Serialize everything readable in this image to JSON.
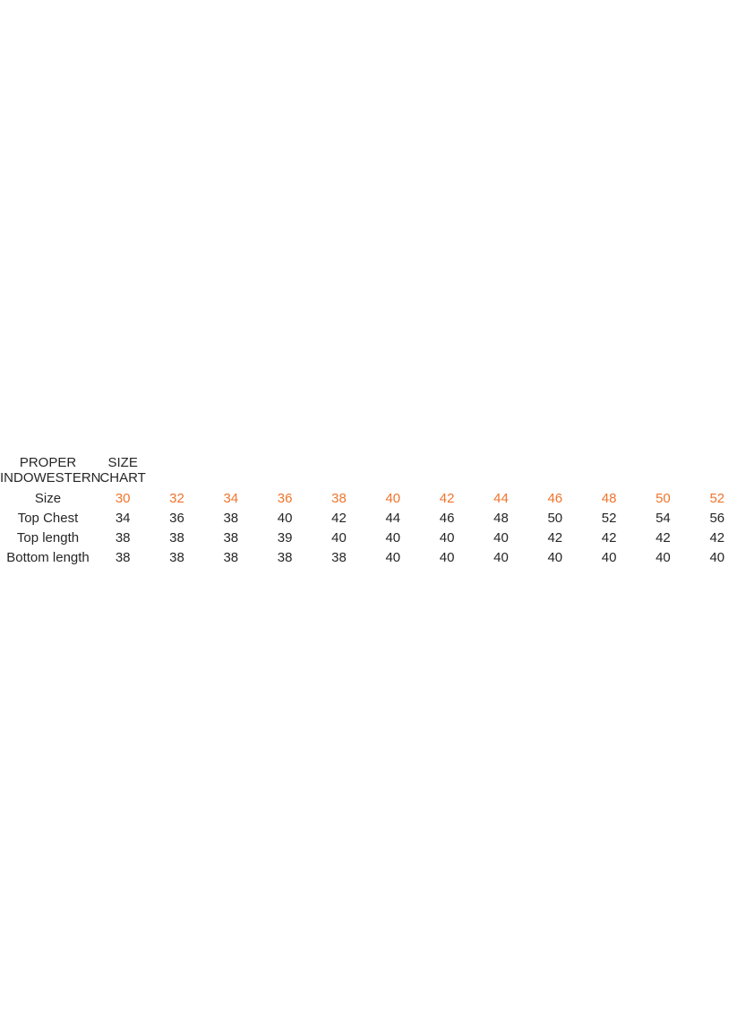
{
  "page": {
    "background": "#ffffff",
    "text_color": "#262626",
    "accent_color": "#F0742C"
  },
  "chart_data": {
    "type": "table",
    "title": "PROPER INDOWESTERN SIZE CHART",
    "header_col1": "PROPER INDOWESTERN",
    "header_col2": "SIZE CHART",
    "legend_note": "Size row values shown in orange accent color",
    "rows": [
      {
        "label": "Size",
        "highlight": true,
        "values": [
          "30",
          "32",
          "34",
          "36",
          "38",
          "40",
          "42",
          "44",
          "46",
          "48",
          "50",
          "52"
        ]
      },
      {
        "label": "Top Chest",
        "highlight": false,
        "values": [
          "34",
          "36",
          "38",
          "40",
          "42",
          "44",
          "46",
          "48",
          "50",
          "52",
          "54",
          "56"
        ]
      },
      {
        "label": "Top length",
        "highlight": false,
        "values": [
          "38",
          "38",
          "38",
          "39",
          "40",
          "40",
          "40",
          "40",
          "42",
          "42",
          "42",
          "42"
        ]
      },
      {
        "label": "Bottom length",
        "highlight": false,
        "values": [
          "38",
          "38",
          "38",
          "38",
          "38",
          "40",
          "40",
          "40",
          "40",
          "40",
          "40",
          "40"
        ]
      }
    ]
  }
}
